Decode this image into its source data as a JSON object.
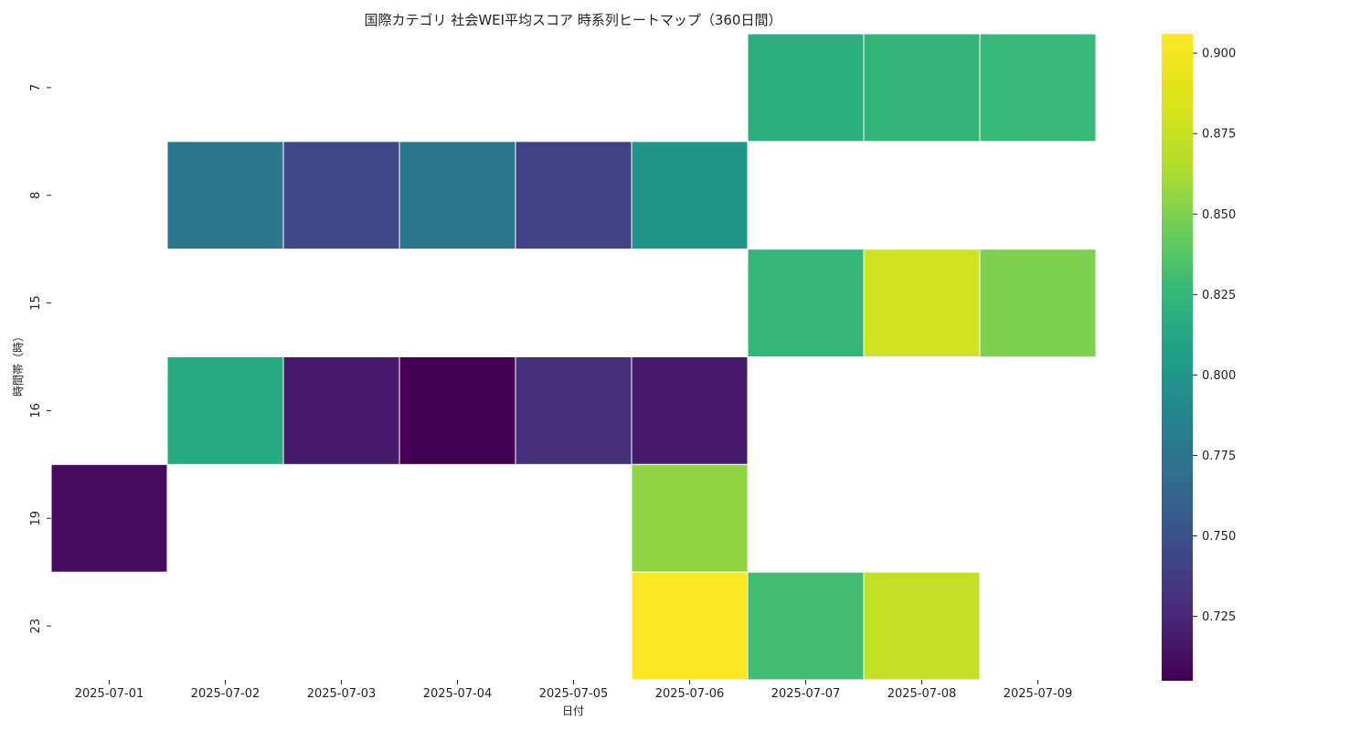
{
  "chart_data": {
    "type": "heatmap",
    "title": "国際カテゴリ 社会WEI平均スコア 時系列ヒートマップ（360日間）",
    "xlabel": "日付",
    "ylabel": "時間帯（時）",
    "x_categories": [
      "2025-07-01",
      "2025-07-02",
      "2025-07-03",
      "2025-07-04",
      "2025-07-05",
      "2025-07-06",
      "2025-07-07",
      "2025-07-08",
      "2025-07-09"
    ],
    "y_categories": [
      "7",
      "8",
      "15",
      "16",
      "19",
      "23"
    ],
    "values": [
      [
        null,
        null,
        null,
        null,
        null,
        null,
        0.818,
        0.823,
        0.827
      ],
      [
        null,
        0.777,
        0.745,
        0.777,
        0.74,
        0.8,
        null,
        null,
        null
      ],
      [
        null,
        null,
        null,
        null,
        null,
        null,
        0.825,
        0.88,
        0.85
      ],
      [
        null,
        0.815,
        0.718,
        0.705,
        0.73,
        0.718,
        null,
        null,
        null
      ],
      [
        0.71,
        null,
        null,
        null,
        null,
        0.855,
        null,
        null,
        null
      ],
      [
        null,
        null,
        null,
        null,
        null,
        0.906,
        0.83,
        0.873,
        null
      ]
    ],
    "colorbar": {
      "colormap": "viridis",
      "min": 0.705,
      "max": 0.906,
      "ticks": [
        0.725,
        0.75,
        0.775,
        0.8,
        0.825,
        0.85,
        0.875,
        0.9
      ],
      "tick_labels": [
        "0.725",
        "0.750",
        "0.775",
        "0.800",
        "0.825",
        "0.850",
        "0.875",
        "0.900"
      ]
    },
    "grid": false,
    "legend": "colorbar-right"
  }
}
